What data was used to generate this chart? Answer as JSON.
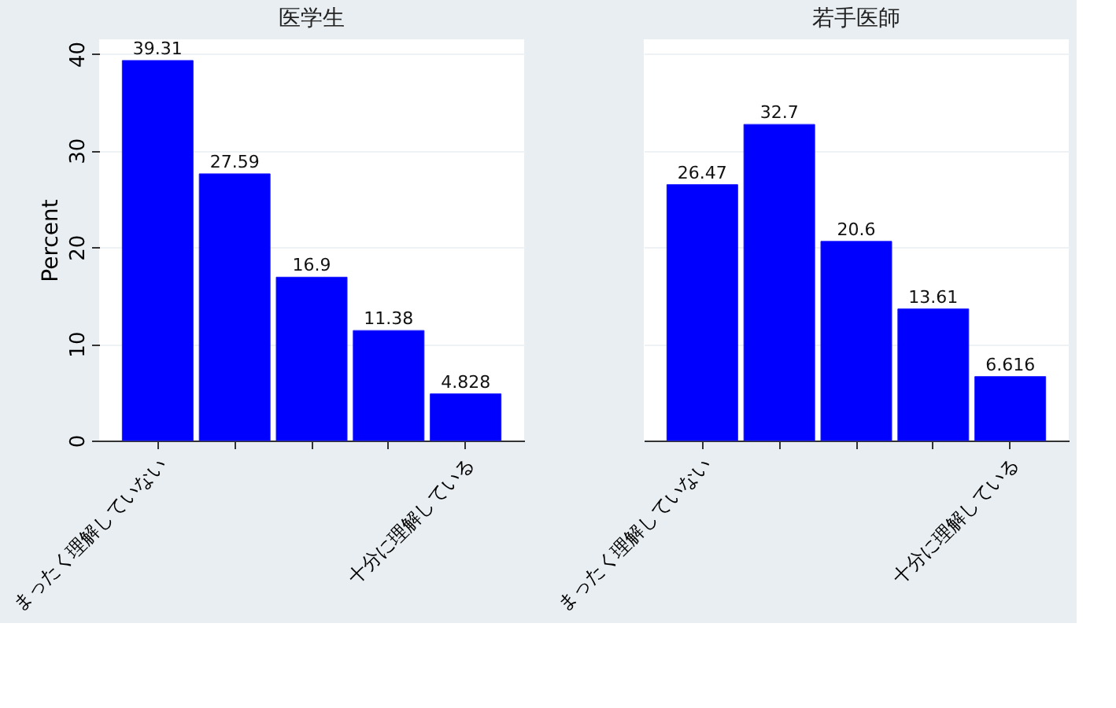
{
  "chart_data": [
    {
      "type": "bar",
      "title": "医学生",
      "ylabel": "Percent",
      "categories": [
        "まったく理解していない",
        null,
        null,
        null,
        "十分に理解している"
      ],
      "values": [
        39.31,
        27.59,
        16.9,
        11.38,
        4.828
      ],
      "color": "#0000ff",
      "ylim": [
        0,
        41.5
      ],
      "yticks": [
        0,
        10,
        20,
        30,
        40
      ],
      "grid": "y",
      "data_labels": true
    },
    {
      "type": "bar",
      "title": "若手医師",
      "categories": [
        "まったく理解していない",
        null,
        null,
        null,
        "十分に理解している"
      ],
      "values": [
        26.47,
        32.7,
        20.6,
        13.61,
        6.616
      ],
      "color": "#0000ff",
      "ylim": [
        0,
        41.5
      ],
      "yticks": [
        0,
        10,
        20,
        30,
        40
      ],
      "grid": "y",
      "data_labels": true,
      "tick_labels": "x"
    }
  ]
}
